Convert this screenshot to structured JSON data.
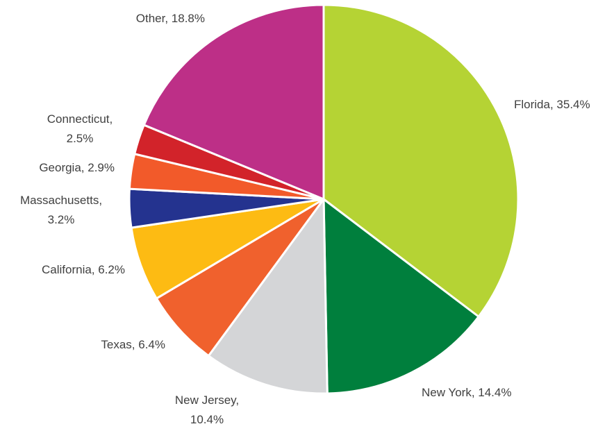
{
  "chart_data": {
    "type": "pie",
    "values": [
      35.4,
      14.4,
      10.4,
      6.4,
      6.2,
      3.2,
      2.9,
      2.5,
      18.8
    ],
    "value_labels": [
      "Florida, 35.4%",
      "New York, 14.4%",
      "New Jersey,\n10.4%",
      "Texas, 6.4%",
      "California, 6.2%",
      "Massachusetts,\n3.2%",
      "Georgia, 2.9%",
      "Connecticut,\n2.5%",
      "Other, 18.8%"
    ],
    "colors": [
      "#b5d334",
      "#007f3d",
      "#d4d5d7",
      "#f0612d",
      "#fdbb13",
      "#24338f",
      "#f25a2a",
      "#d2232a",
      "#bd2f87"
    ]
  }
}
